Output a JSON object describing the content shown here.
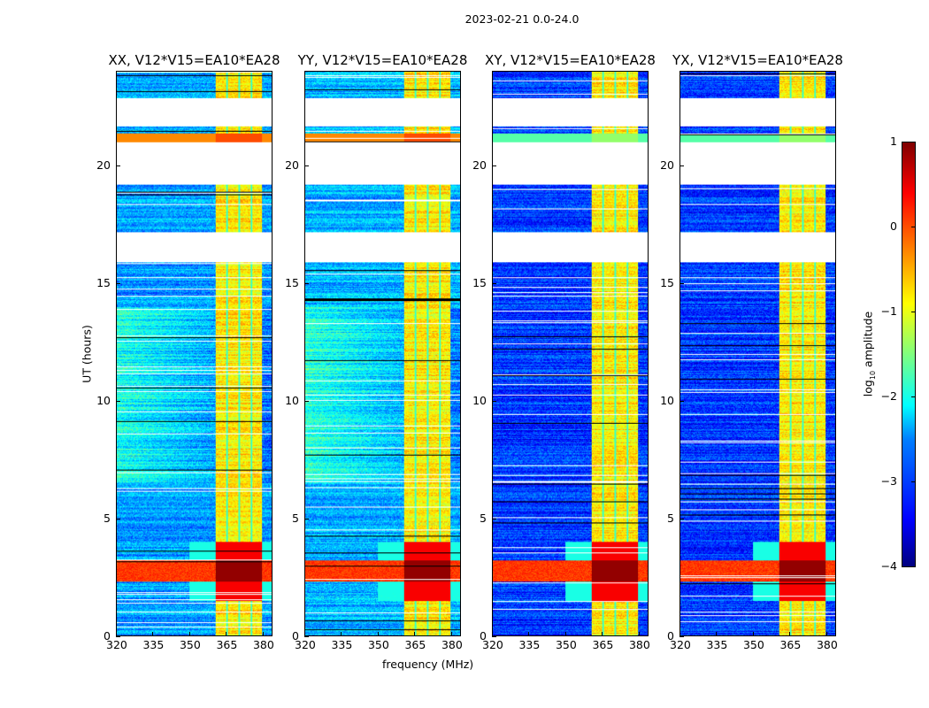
{
  "chart_data": {
    "type": "heatmap",
    "suptitle": "2023-02-21 0.0-24.0",
    "xlabel": "frequency (MHz)",
    "ylabel": "UT (hours)",
    "xlim": [
      320,
      384
    ],
    "ylim": [
      0,
      24
    ],
    "xticks": [
      "320",
      "335",
      "350",
      "365",
      "380"
    ],
    "xtick_values": [
      320,
      335,
      350,
      365,
      380
    ],
    "yticks": [
      "0",
      "5",
      "10",
      "15",
      "20"
    ],
    "ytick_values": [
      0,
      5,
      10,
      15,
      20
    ],
    "panels": [
      {
        "title": "XX, V12*V15=EA10*EA28",
        "baseline_log_amp": -2.6,
        "band_2100_log_amp": -0.3
      },
      {
        "title": "YY, V12*V15=EA10*EA28",
        "baseline_log_amp": -2.5,
        "band_2100_log_amp": -0.3
      },
      {
        "title": "XY, V12*V15=EA10*EA28",
        "baseline_log_amp": -3.1,
        "band_2100_log_amp": -1.7
      },
      {
        "title": "YX, V12*V15=EA10*EA28",
        "baseline_log_amp": -3.1,
        "band_2100_log_amp": -1.7
      }
    ],
    "rfi_band_mhz": [
      360.5,
      380
    ],
    "strong_rfi_hours": [
      2.3,
      3.2
    ],
    "flagged_hours": [
      [
        15.9,
        17.2
      ],
      [
        19.2,
        21.0
      ],
      [
        21.7,
        22.9
      ]
    ],
    "colorbar": {
      "label_main": "log",
      "label_sub": "10",
      "label_rest": " amplitude",
      "range": [
        -4,
        1
      ],
      "ticks": [
        "1",
        "0",
        "−1",
        "−2",
        "−3",
        "−4"
      ],
      "tick_values": [
        1,
        0,
        -1,
        -2,
        -3,
        -4
      ],
      "colormap": "jet"
    }
  }
}
